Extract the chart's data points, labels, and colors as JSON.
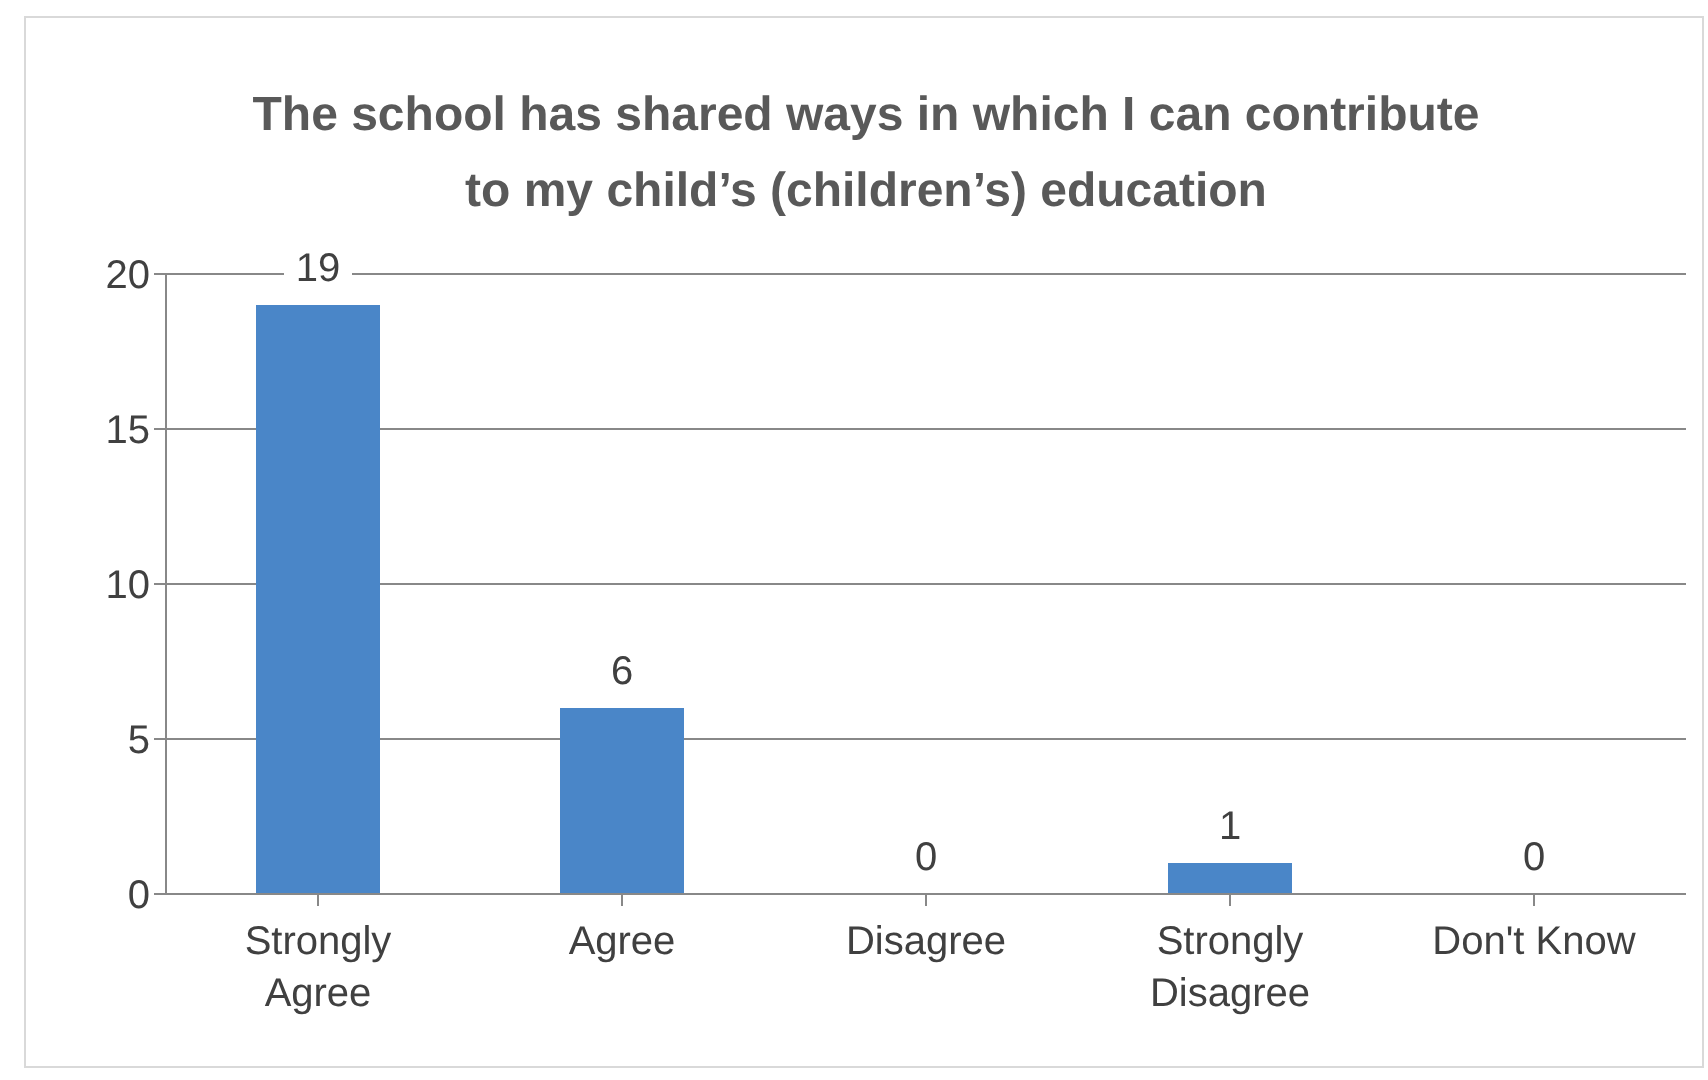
{
  "chart_data": {
    "type": "bar",
    "title": "The school has shared ways in which I can contribute to my child’s (children’s) education",
    "categories": [
      "Strongly Agree",
      "Agree",
      "Disagree",
      "Strongly Disagree",
      "Don't Know"
    ],
    "values": [
      19,
      6,
      0,
      1,
      0
    ],
    "color": "#4a86c8",
    "ylim": [
      0,
      20
    ],
    "yticks": [
      0,
      5,
      10,
      15,
      20
    ],
    "grid": "y",
    "data_labels": true
  }
}
